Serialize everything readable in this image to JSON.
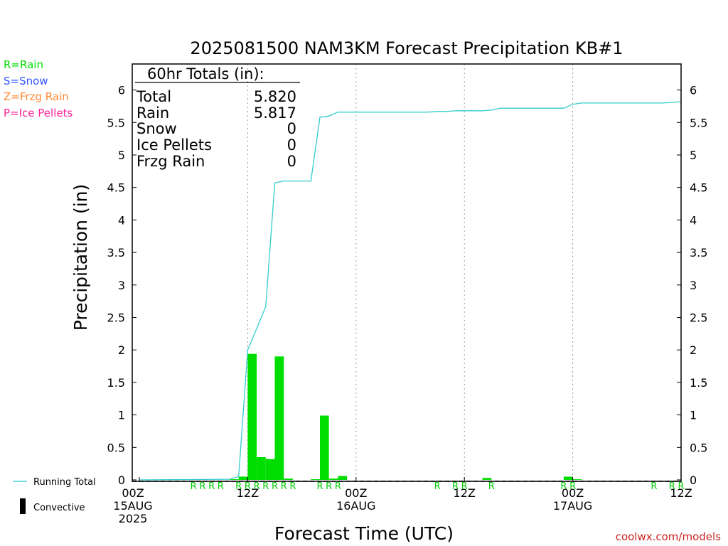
{
  "chart_data": {
    "type": "bar",
    "title": "2025081500 NAM3KM Forecast Precipitation KB#1",
    "xlabel": "Forecast Time (UTC)",
    "ylabel": "Precipitation (in)",
    "ylim": [
      0,
      6.45
    ],
    "xlim": [
      0,
      60
    ],
    "yticks": [
      0,
      0.5,
      1,
      1.5,
      2,
      2.5,
      3,
      3.5,
      4,
      4.5,
      5,
      5.5,
      6
    ],
    "ytick_labels": [
      "0",
      "0.5",
      "1",
      "1.5",
      "2",
      "2.5",
      "3",
      "3.5",
      "4",
      "4.5",
      "5",
      "5.5",
      "6"
    ],
    "xticks": [
      {
        "hour": 0,
        "lines": [
          "00Z",
          "15AUG",
          "2025"
        ]
      },
      {
        "hour": 12,
        "lines": [
          "12Z"
        ]
      },
      {
        "hour": 24,
        "lines": [
          "00Z",
          "16AUG"
        ]
      },
      {
        "hour": 36,
        "lines": [
          "12Z"
        ]
      },
      {
        "hour": 48,
        "lines": [
          "00Z",
          "17AUG"
        ]
      },
      {
        "hour": 60,
        "lines": [
          "12Z"
        ]
      }
    ],
    "grid_hours": [
      12,
      24,
      36,
      48
    ],
    "totals_box": {
      "header": "60hr Totals (in):",
      "rows": [
        {
          "label": "Total",
          "value": "5.820"
        },
        {
          "label": "Rain",
          "value": "5.817"
        },
        {
          "label": "Snow",
          "value": "0"
        },
        {
          "label": "Ice Pellets",
          "value": "0"
        },
        {
          "label": "Frzg Rain",
          "value": "0"
        }
      ]
    },
    "ptype_legend": [
      {
        "text": "R=Rain",
        "color": "#00dd00"
      },
      {
        "text": "S=Snow",
        "color": "#3355ff"
      },
      {
        "text": "Z=Frzg Rain",
        "color": "#ff8833"
      },
      {
        "text": "P=Ice Pellets",
        "color": "#ff2299"
      }
    ],
    "series": [
      {
        "name": "Running Total",
        "kind": "line",
        "color": "#33cccc",
        "x": [
          0,
          10,
          11,
          12,
          13,
          14,
          15,
          16,
          17,
          18,
          19,
          20,
          21,
          22,
          23,
          24,
          25,
          26,
          27,
          28,
          29,
          30,
          31,
          32,
          33,
          34,
          35,
          36,
          37,
          38,
          39,
          40,
          41,
          42,
          43,
          44,
          45,
          46,
          47,
          48,
          49,
          50,
          51,
          52,
          53,
          54,
          55,
          56,
          57,
          58,
          59,
          60
        ],
        "values": [
          0,
          0.01,
          0.05,
          2.0,
          2.33,
          2.67,
          4.57,
          4.6,
          4.6,
          4.6,
          4.6,
          5.58,
          5.6,
          5.66,
          5.66,
          5.66,
          5.66,
          5.66,
          5.66,
          5.66,
          5.66,
          5.66,
          5.66,
          5.66,
          5.67,
          5.67,
          5.68,
          5.68,
          5.68,
          5.68,
          5.69,
          5.72,
          5.72,
          5.72,
          5.72,
          5.72,
          5.72,
          5.72,
          5.72,
          5.78,
          5.8,
          5.8,
          5.8,
          5.8,
          5.8,
          5.8,
          5.8,
          5.8,
          5.8,
          5.8,
          5.81,
          5.82
        ]
      },
      {
        "name": "Convective",
        "kind": "bar",
        "color": "#000000",
        "x": [],
        "values": []
      },
      {
        "name": "Rain",
        "kind": "bar",
        "color": "#00dd00",
        "x": [
          10,
          11,
          12,
          13,
          14,
          15,
          16,
          19,
          20,
          21,
          22,
          38,
          47,
          48
        ],
        "values": [
          0.01,
          0.05,
          1.94,
          0.35,
          0.32,
          1.9,
          0.02,
          0.01,
          0.99,
          0.02,
          0.06,
          0.03,
          0.05,
          0.01
        ]
      }
    ],
    "ptype_marks": [
      {
        "hour": 6,
        "text": "R"
      },
      {
        "hour": 7,
        "text": "R"
      },
      {
        "hour": 8,
        "text": "R"
      },
      {
        "hour": 9,
        "text": "R"
      },
      {
        "hour": 11,
        "text": "R"
      },
      {
        "hour": 12,
        "text": "R"
      },
      {
        "hour": 13,
        "text": "R"
      },
      {
        "hour": 14,
        "text": "R"
      },
      {
        "hour": 15,
        "text": "R"
      },
      {
        "hour": 16,
        "text": "R"
      },
      {
        "hour": 17,
        "text": "R"
      },
      {
        "hour": 20,
        "text": "R"
      },
      {
        "hour": 21,
        "text": "R"
      },
      {
        "hour": 22,
        "text": "R"
      },
      {
        "hour": 33,
        "text": "R"
      },
      {
        "hour": 35,
        "text": "R"
      },
      {
        "hour": 36,
        "text": "R"
      },
      {
        "hour": 39,
        "text": "R"
      },
      {
        "hour": 47,
        "text": "R"
      },
      {
        "hour": 48,
        "text": "R"
      },
      {
        "hour": 57,
        "text": "R"
      },
      {
        "hour": 59,
        "text": "R"
      },
      {
        "hour": 60,
        "text": "R"
      }
    ]
  },
  "legend": {
    "running_total": "Running Total",
    "convective": "Convective"
  },
  "footer": {
    "source": "coolwx.com/models"
  }
}
